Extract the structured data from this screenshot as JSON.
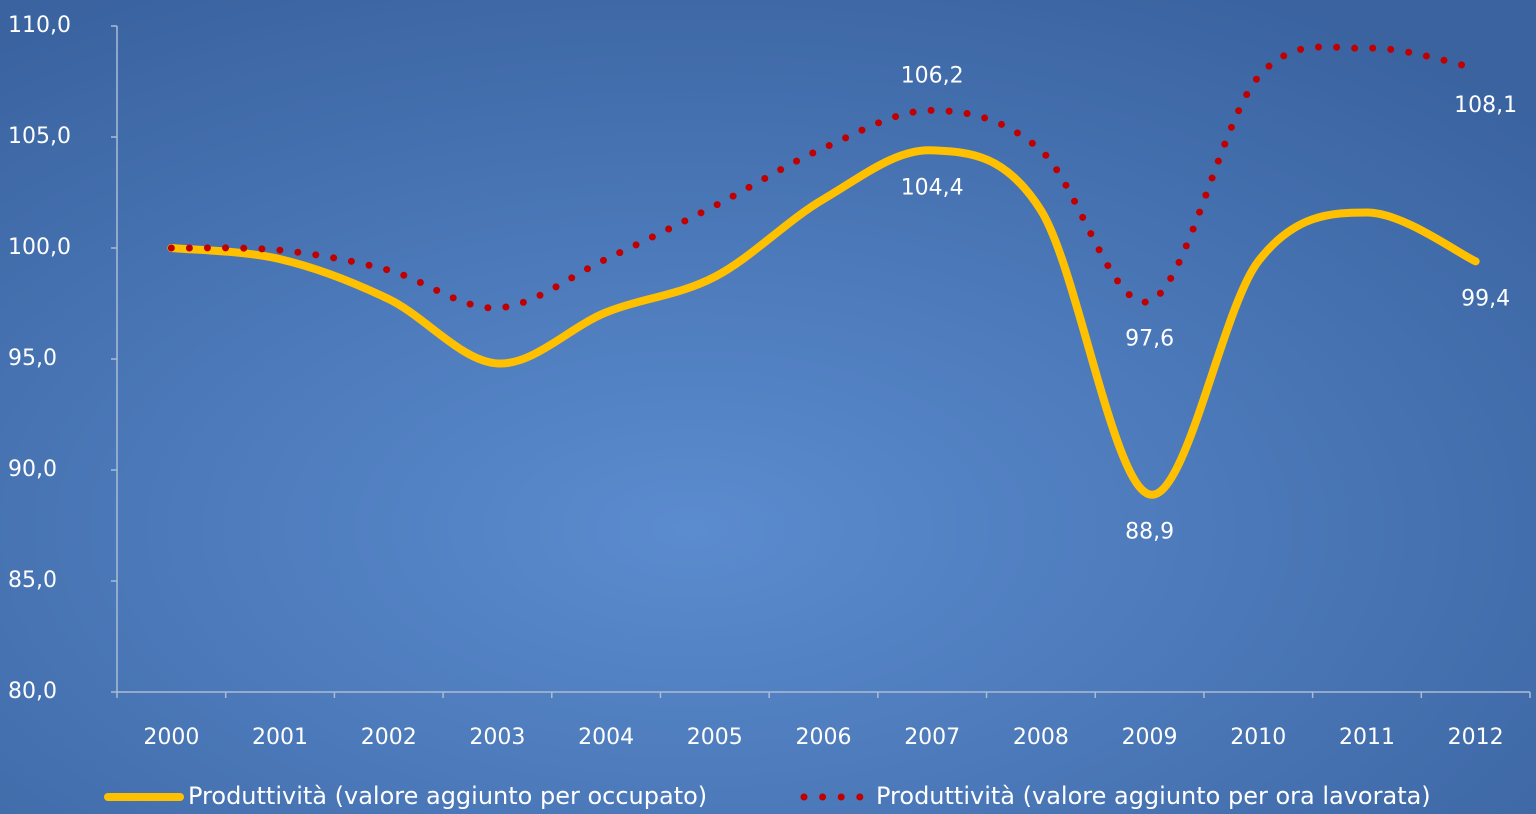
{
  "chart_data": {
    "type": "line",
    "categories": [
      "2000",
      "2001",
      "2002",
      "2003",
      "2004",
      "2005",
      "2006",
      "2007",
      "2008",
      "2009",
      "2010",
      "2011",
      "2012"
    ],
    "series": [
      {
        "name": "Produttività (valore aggiunto per occupato)",
        "color": "#ffc000",
        "style": "solid",
        "values": [
          100.0,
          99.5,
          97.7,
          94.8,
          97.1,
          98.7,
          102.2,
          104.4,
          101.7,
          88.9,
          99.4,
          101.6,
          99.4
        ],
        "value_labels": [
          null,
          null,
          null,
          null,
          null,
          null,
          null,
          "104,4",
          null,
          "88,9",
          null,
          null,
          "99,4"
        ]
      },
      {
        "name": "Produttività (valore aggiunto per ora lavorata)",
        "color": "#c00000",
        "style": "dotted",
        "values": [
          100.0,
          99.9,
          99.0,
          97.3,
          99.5,
          101.9,
          104.5,
          106.2,
          104.4,
          97.6,
          107.7,
          109.0,
          108.1
        ],
        "value_labels": [
          null,
          null,
          null,
          null,
          null,
          null,
          null,
          "106,2",
          null,
          "97,6",
          null,
          null,
          "108,1"
        ]
      }
    ],
    "ylim": [
      80,
      110
    ],
    "yticks": [
      {
        "value": 80,
        "label": "80,0"
      },
      {
        "value": 85,
        "label": "85,0"
      },
      {
        "value": 90,
        "label": "90,0"
      },
      {
        "value": 95,
        "label": "95,0"
      },
      {
        "value": 100,
        "label": "100,0"
      },
      {
        "value": 105,
        "label": "105,0"
      },
      {
        "value": 110,
        "label": "110,0"
      }
    ],
    "grid": false,
    "legend": "bottom"
  }
}
